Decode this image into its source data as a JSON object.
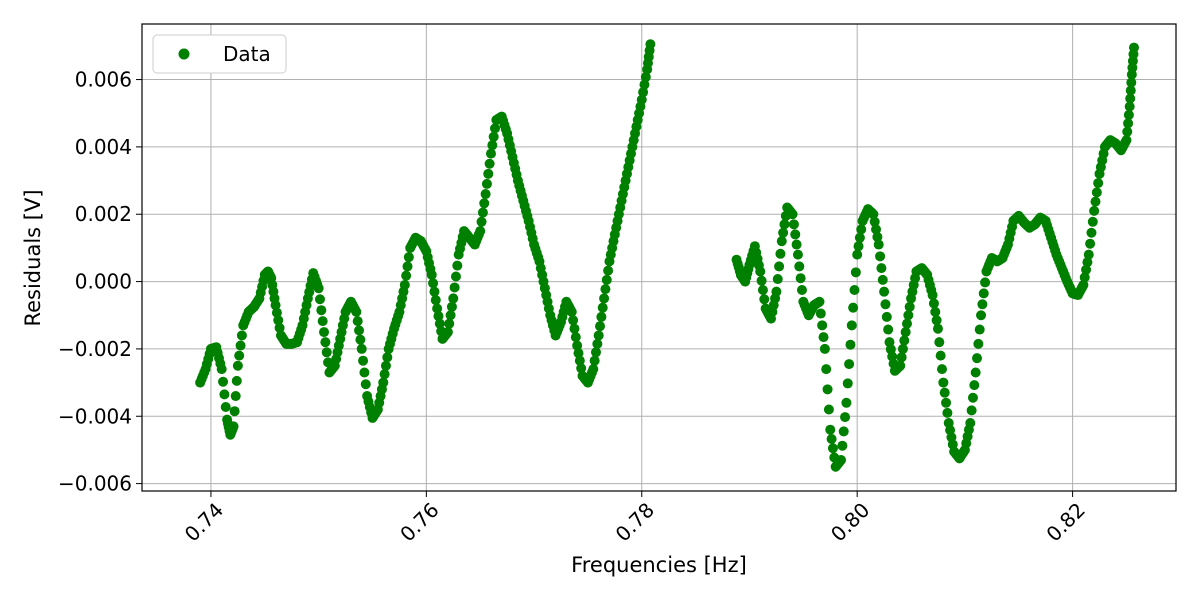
{
  "chart_data": {
    "type": "scatter",
    "xlabel": "Frequencies [Hz]",
    "ylabel": "Residuals [V]",
    "xlim": [
      0.7336,
      0.8296
    ],
    "ylim": [
      -0.00622,
      0.00765
    ],
    "xticks": [
      {
        "value": 0.74,
        "label": "0.74"
      },
      {
        "value": 0.76,
        "label": "0.76"
      },
      {
        "value": 0.78,
        "label": "0.78"
      },
      {
        "value": 0.8,
        "label": "0.80"
      },
      {
        "value": 0.82,
        "label": "0.82"
      }
    ],
    "yticks": [
      {
        "value": -0.006,
        "label": "−0.006"
      },
      {
        "value": -0.004,
        "label": "−0.004"
      },
      {
        "value": -0.002,
        "label": "−0.002"
      },
      {
        "value": 0.0,
        "label": "0.000"
      },
      {
        "value": 0.002,
        "label": "0.002"
      },
      {
        "value": 0.004,
        "label": "0.004"
      },
      {
        "value": 0.006,
        "label": "0.006"
      }
    ],
    "grid": true,
    "legend": {
      "position": "top-left",
      "entries": [
        "Data"
      ]
    },
    "series": [
      {
        "name": "Data",
        "color": "#008000",
        "points": [
          [
            0.739,
            -0.003
          ],
          [
            0.7395,
            -0.0026
          ],
          [
            0.74,
            -0.002
          ],
          [
            0.7405,
            -0.00195
          ],
          [
            0.741,
            -0.0026
          ],
          [
            0.7415,
            -0.0041
          ],
          [
            0.7418,
            -0.00455
          ],
          [
            0.7421,
            -0.0043
          ],
          [
            0.7425,
            -0.0025
          ],
          [
            0.743,
            -0.0013
          ],
          [
            0.7435,
            -0.0009
          ],
          [
            0.744,
            -0.00075
          ],
          [
            0.7445,
            -0.0005
          ],
          [
            0.745,
            0.0002
          ],
          [
            0.7453,
            0.0003
          ],
          [
            0.7456,
            0.0001
          ],
          [
            0.746,
            -0.0007
          ],
          [
            0.7465,
            -0.0016
          ],
          [
            0.747,
            -0.00185
          ],
          [
            0.7475,
            -0.00185
          ],
          [
            0.748,
            -0.0018
          ],
          [
            0.7485,
            -0.0013
          ],
          [
            0.749,
            -0.0005
          ],
          [
            0.7495,
            0.00025
          ],
          [
            0.75,
            -0.0002
          ],
          [
            0.7505,
            -0.0015
          ],
          [
            0.751,
            -0.0027
          ],
          [
            0.7515,
            -0.0025
          ],
          [
            0.752,
            -0.0017
          ],
          [
            0.7525,
            -0.0009
          ],
          [
            0.753,
            -0.0006
          ],
          [
            0.7535,
            -0.0009
          ],
          [
            0.754,
            -0.002
          ],
          [
            0.7545,
            -0.0034
          ],
          [
            0.755,
            -0.00405
          ],
          [
            0.7555,
            -0.0038
          ],
          [
            0.756,
            -0.003
          ],
          [
            0.7565,
            -0.002
          ],
          [
            0.757,
            -0.0014
          ],
          [
            0.7575,
            -0.0009
          ],
          [
            0.758,
            -0.0001
          ],
          [
            0.7585,
            0.001
          ],
          [
            0.759,
            0.0013
          ],
          [
            0.7595,
            0.0012
          ],
          [
            0.76,
            0.0009
          ],
          [
            0.7605,
            0.0002
          ],
          [
            0.761,
            -0.0008
          ],
          [
            0.7615,
            -0.0017
          ],
          [
            0.762,
            -0.0015
          ],
          [
            0.7625,
            -0.0005
          ],
          [
            0.763,
            0.0008
          ],
          [
            0.7635,
            0.0015
          ],
          [
            0.764,
            0.0013
          ],
          [
            0.7645,
            0.0011
          ],
          [
            0.765,
            0.0015
          ],
          [
            0.7655,
            0.0026
          ],
          [
            0.766,
            0.0038
          ],
          [
            0.7665,
            0.0048
          ],
          [
            0.767,
            0.0049
          ],
          [
            0.7675,
            0.0044
          ],
          [
            0.768,
            0.0037
          ],
          [
            0.7685,
            0.003
          ],
          [
            0.769,
            0.0024
          ],
          [
            0.7695,
            0.0018
          ],
          [
            0.77,
            0.0011
          ],
          [
            0.7705,
            0.0006
          ],
          [
            0.771,
            -0.0002
          ],
          [
            0.7715,
            -0.001
          ],
          [
            0.772,
            -0.0016
          ],
          [
            0.7725,
            -0.0012
          ],
          [
            0.773,
            -0.0006
          ],
          [
            0.7735,
            -0.0009
          ],
          [
            0.774,
            -0.0019
          ],
          [
            0.7745,
            -0.0028
          ],
          [
            0.775,
            -0.003
          ],
          [
            0.7755,
            -0.0026
          ],
          [
            0.776,
            -0.0016
          ],
          [
            0.7765,
            -0.0005
          ],
          [
            0.777,
            0.0006
          ],
          [
            0.7775,
            0.0014
          ],
          [
            0.778,
            0.0022
          ],
          [
            0.7785,
            0.003
          ],
          [
            0.779,
            0.0038
          ],
          [
            0.7795,
            0.0046
          ],
          [
            0.78,
            0.0054
          ],
          [
            0.7805,
            0.0063
          ],
          [
            0.7808,
            0.00705
          ],
          [
            0.7888,
            0.00065
          ],
          [
            0.7892,
            0.0002
          ],
          [
            0.7896,
            0.0
          ],
          [
            0.79,
            0.0005
          ],
          [
            0.7905,
            0.00105
          ],
          [
            0.791,
            0.0003
          ],
          [
            0.7915,
            -0.0008
          ],
          [
            0.792,
            -0.0011
          ],
          [
            0.7925,
            -0.0003
          ],
          [
            0.793,
            0.0012
          ],
          [
            0.7935,
            0.0022
          ],
          [
            0.794,
            0.002
          ],
          [
            0.7945,
            0.0008
          ],
          [
            0.795,
            -0.0006
          ],
          [
            0.7955,
            -0.001
          ],
          [
            0.796,
            -0.0007
          ],
          [
            0.7965,
            -0.0006
          ],
          [
            0.797,
            -0.002
          ],
          [
            0.7975,
            -0.0044
          ],
          [
            0.798,
            -0.0055
          ],
          [
            0.7985,
            -0.0053
          ],
          [
            0.799,
            -0.0036
          ],
          [
            0.7995,
            -0.0013
          ],
          [
            0.8,
            0.0008
          ],
          [
            0.8005,
            0.0018
          ],
          [
            0.801,
            0.00215
          ],
          [
            0.8015,
            0.002
          ],
          [
            0.802,
            0.0011
          ],
          [
            0.8025,
            -0.0003
          ],
          [
            0.803,
            -0.0018
          ],
          [
            0.8035,
            -0.00265
          ],
          [
            0.804,
            -0.0025
          ],
          [
            0.8045,
            -0.0015
          ],
          [
            0.805,
            -0.0005
          ],
          [
            0.8055,
            0.0003
          ],
          [
            0.806,
            0.0004
          ],
          [
            0.8065,
            0.0002
          ],
          [
            0.807,
            -0.0004
          ],
          [
            0.8075,
            -0.0014
          ],
          [
            0.808,
            -0.003
          ],
          [
            0.8085,
            -0.0042
          ],
          [
            0.809,
            -0.00505
          ],
          [
            0.8095,
            -0.00525
          ],
          [
            0.81,
            -0.005
          ],
          [
            0.8105,
            -0.0042
          ],
          [
            0.811,
            -0.0027
          ],
          [
            0.8115,
            -0.001
          ],
          [
            0.812,
            0.0003
          ],
          [
            0.8125,
            0.0007
          ],
          [
            0.813,
            0.0006
          ],
          [
            0.8135,
            0.0007
          ],
          [
            0.814,
            0.0011
          ],
          [
            0.8145,
            0.0018
          ],
          [
            0.815,
            0.00195
          ],
          [
            0.8155,
            0.00175
          ],
          [
            0.816,
            0.0016
          ],
          [
            0.8165,
            0.0017
          ],
          [
            0.817,
            0.0019
          ],
          [
            0.8175,
            0.0018
          ],
          [
            0.818,
            0.0013
          ],
          [
            0.8185,
            0.0008
          ],
          [
            0.819,
            0.0004
          ],
          [
            0.8195,
            0.0
          ],
          [
            0.82,
            -0.00035
          ],
          [
            0.8205,
            -0.0004
          ],
          [
            0.821,
            -0.0001
          ],
          [
            0.8215,
            0.0008
          ],
          [
            0.822,
            0.0021
          ],
          [
            0.8225,
            0.0032
          ],
          [
            0.823,
            0.004
          ],
          [
            0.8235,
            0.0042
          ],
          [
            0.824,
            0.0041
          ],
          [
            0.8245,
            0.0039
          ],
          [
            0.825,
            0.0042
          ],
          [
            0.8253,
            0.0052
          ],
          [
            0.8255,
            0.00615
          ],
          [
            0.8257,
            0.00695
          ]
        ]
      }
    ]
  }
}
